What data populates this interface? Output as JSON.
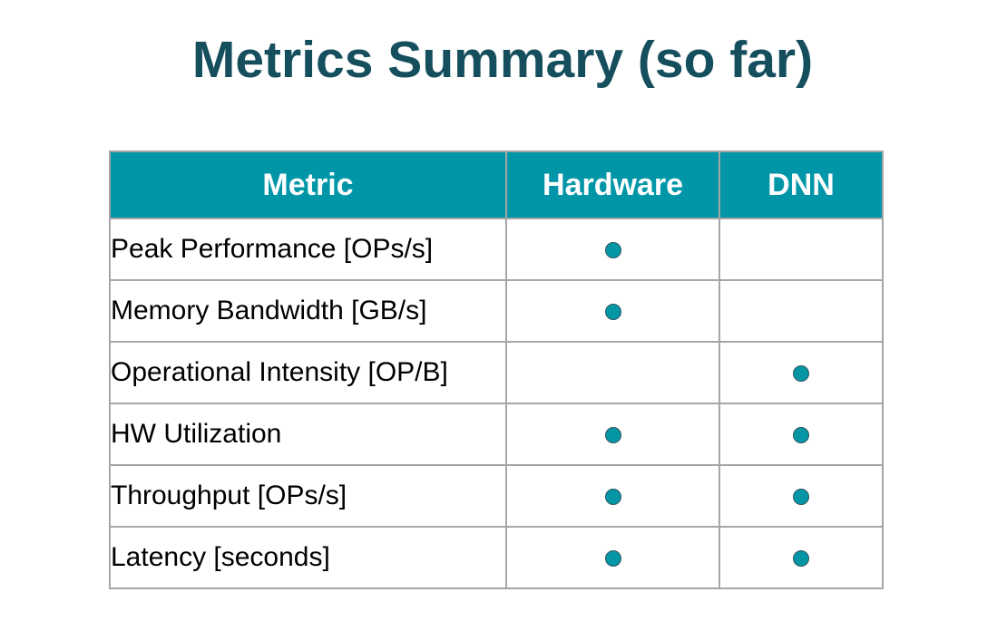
{
  "title": "Metrics Summary (so far)",
  "table": {
    "headers": [
      "Metric",
      "Hardware",
      "DNN"
    ],
    "rows": [
      {
        "metric": "Peak Performance [OPs/s]",
        "hardware": true,
        "dnn": false
      },
      {
        "metric": "Memory Bandwidth [GB/s]",
        "hardware": true,
        "dnn": false
      },
      {
        "metric": "Operational Intensity [OP/B]",
        "hardware": false,
        "dnn": true
      },
      {
        "metric": "HW Utilization",
        "hardware": true,
        "dnn": true
      },
      {
        "metric": "Throughput [OPs/s]",
        "hardware": true,
        "dnn": true
      },
      {
        "metric": "Latency [seconds]",
        "hardware": true,
        "dnn": true
      }
    ]
  },
  "colors": {
    "title": "#154f5e",
    "header_bg": "#0096a8",
    "dot_fill": "#0596a6",
    "border": "#a6a6a6"
  },
  "icons": {
    "mark": "filled-circle-icon"
  }
}
